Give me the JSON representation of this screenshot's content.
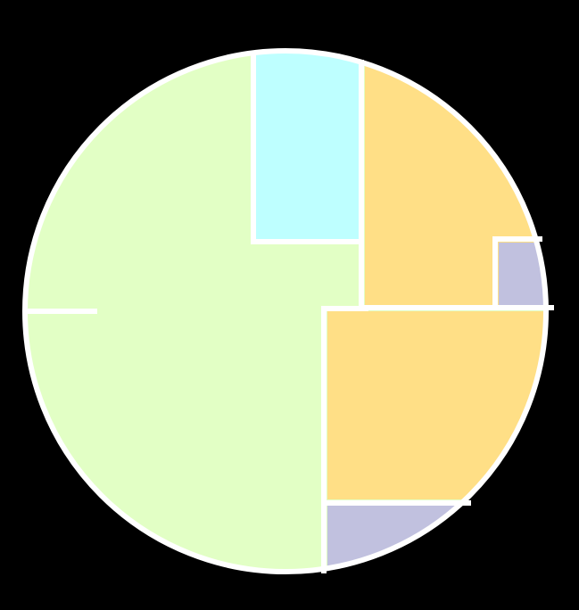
{
  "diagram": {
    "background_color": "#000000",
    "outline_color": "#ffffff",
    "regions": [
      {
        "id": "green",
        "fill": "#e2ffc5"
      },
      {
        "id": "cyan",
        "fill": "#beffff"
      },
      {
        "id": "yellow-upper",
        "fill": "#ffdf86"
      },
      {
        "id": "purple-small",
        "fill": "#c1c1df"
      },
      {
        "id": "yellow-lower",
        "fill": "#ffdf86"
      },
      {
        "id": "purple-lower",
        "fill": "#c1c1df"
      }
    ]
  }
}
